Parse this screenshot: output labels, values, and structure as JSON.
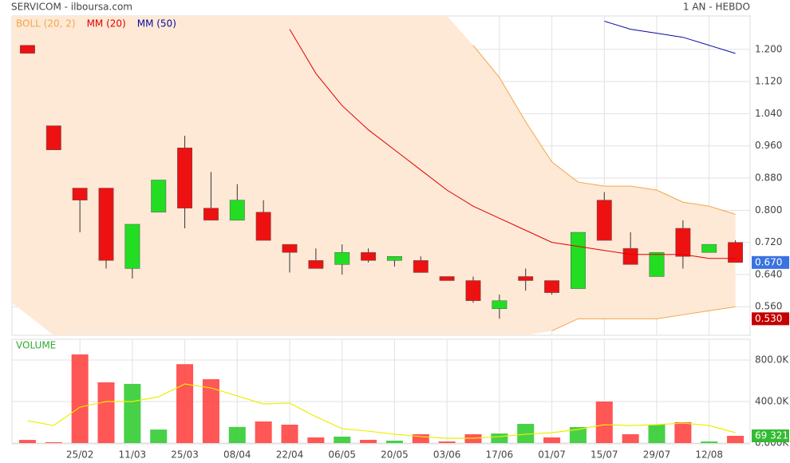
{
  "chart_data": [
    {
      "type": "candlestick",
      "title": "SERVICOM - ilboursa.com",
      "subtitle": "1 AN - HEBDO",
      "open": [
        1.21,
        1.01,
        0.855,
        0.855,
        0.655,
        0.795,
        0.955,
        0.805,
        0.775,
        0.795,
        0.715,
        0.675,
        0.665,
        0.695,
        0.675,
        0.675,
        0.635,
        0.625,
        0.555,
        0.635,
        0.625,
        0.605,
        0.825,
        0.705,
        0.635,
        0.755,
        0.695,
        0.72
      ],
      "high": [
        1.21,
        1.01,
        0.855,
        0.855,
        0.765,
        0.875,
        0.985,
        0.895,
        0.865,
        0.825,
        0.715,
        0.705,
        0.715,
        0.705,
        0.685,
        0.685,
        0.635,
        0.635,
        0.59,
        0.655,
        0.625,
        0.745,
        0.845,
        0.745,
        0.695,
        0.775,
        0.715,
        0.725
      ],
      "low": [
        1.19,
        0.95,
        0.745,
        0.655,
        0.63,
        0.795,
        0.755,
        0.775,
        0.775,
        0.725,
        0.645,
        0.655,
        0.64,
        0.67,
        0.66,
        0.645,
        0.625,
        0.57,
        0.53,
        0.6,
        0.59,
        0.605,
        0.725,
        0.665,
        0.635,
        0.655,
        0.695,
        0.67
      ],
      "close": [
        1.19,
        0.95,
        0.825,
        0.675,
        0.765,
        0.875,
        0.805,
        0.775,
        0.825,
        0.725,
        0.695,
        0.655,
        0.695,
        0.675,
        0.685,
        0.645,
        0.625,
        0.575,
        0.575,
        0.625,
        0.595,
        0.745,
        0.725,
        0.665,
        0.695,
        0.685,
        0.715,
        0.67
      ],
      "up_color": "#22dd22",
      "down_color": "#ee1111",
      "band": {
        "name": "BOLL (20, 2)",
        "color": "#f5a54a",
        "fill": "#fde9d6",
        "upper": [
          null,
          null,
          null,
          null,
          null,
          null,
          null,
          null,
          null,
          null,
          null,
          null,
          null,
          null,
          null,
          null,
          null,
          1.21,
          1.13,
          1.02,
          0.92,
          0.87,
          0.86,
          0.86,
          0.85,
          0.82,
          0.81,
          0.79
        ],
        "lower": [
          0.57,
          null,
          null,
          null,
          null,
          null,
          null,
          null,
          null,
          null,
          null,
          null,
          null,
          null,
          null,
          null,
          null,
          null,
          null,
          null,
          0.5,
          0.53,
          0.53,
          0.53,
          0.53,
          0.54,
          0.55,
          0.56
        ]
      },
      "series": [
        {
          "name": "MM (20)",
          "color": "#e00000",
          "values": [
            null,
            null,
            null,
            null,
            null,
            null,
            null,
            null,
            null,
            null,
            1.25,
            1.14,
            1.06,
            1.0,
            0.95,
            0.9,
            0.85,
            0.81,
            0.78,
            0.75,
            0.72,
            0.71,
            0.7,
            0.69,
            0.69,
            0.69,
            0.68,
            0.68
          ]
        },
        {
          "name": "MM (50)",
          "color": "#0a0aa0",
          "values": [
            null,
            null,
            null,
            null,
            null,
            null,
            null,
            null,
            null,
            null,
            null,
            null,
            null,
            null,
            null,
            null,
            null,
            null,
            null,
            null,
            null,
            null,
            1.27,
            1.25,
            1.24,
            1.23,
            1.21,
            1.19
          ]
        }
      ],
      "ylim": [
        0.489,
        1.283
      ],
      "yticks": [
        {
          "value": 0.56,
          "label": "0.560"
        },
        {
          "value": 0.64,
          "label": "0.640"
        },
        {
          "value": 0.72,
          "label": "0.720"
        },
        {
          "value": 0.8,
          "label": "0.800"
        },
        {
          "value": 0.88,
          "label": "0.880"
        },
        {
          "value": 0.96,
          "label": "0.960"
        },
        {
          "value": 1.04,
          "label": "1.040"
        },
        {
          "value": 1.12,
          "label": "1.120"
        },
        {
          "value": 1.2,
          "label": "1.200"
        }
      ],
      "price_labels": [
        {
          "value": 0.67,
          "label": "0.670",
          "color": "#3a72e0"
        },
        {
          "value": 0.53,
          "label": "0.530",
          "color": "#c40000"
        }
      ],
      "grid": true
    },
    {
      "type": "bar",
      "title": "VOLUME",
      "title_color": "#33aa33",
      "categories": [
        null,
        null,
        "25/02",
        null,
        "11/03",
        null,
        "25/03",
        null,
        "08/04",
        null,
        "22/04",
        null,
        "06/05",
        null,
        "20/05",
        null,
        "03/06",
        null,
        "17/06",
        null,
        "01/07",
        null,
        "15/07",
        null,
        "29/07",
        null,
        "12/08",
        null
      ],
      "values": [
        30000,
        8000,
        854000,
        585000,
        570000,
        130000,
        760000,
        615000,
        155000,
        208000,
        177000,
        54000,
        62000,
        31000,
        23000,
        85000,
        15000,
        85000,
        92000,
        185000,
        54000,
        154000,
        400000,
        85000,
        177000,
        200000,
        15000,
        69321
      ],
      "colors": [
        "#f44",
        "#f44",
        "#f44",
        "#f44",
        "#3c3",
        "#3c3",
        "#f44",
        "#f44",
        "#3c3",
        "#f44",
        "#f44",
        "#f44",
        "#3c3",
        "#f44",
        "#3c3",
        "#f44",
        "#f44",
        "#f44",
        "#3c3",
        "#3c3",
        "#f44",
        "#3c3",
        "#f44",
        "#f44",
        "#3c3",
        "#f44",
        "#3c3",
        "#f44"
      ],
      "average": {
        "color": "#eeee00",
        "values": [
          215000,
          169000,
          346000,
          400000,
          400000,
          446000,
          569000,
          531000,
          454000,
          377000,
          385000,
          254000,
          138000,
          115000,
          85000,
          62000,
          46000,
          46000,
          62000,
          85000,
          100000,
          131000,
          177000,
          169000,
          177000,
          192000,
          169000,
          100000
        ]
      },
      "ylim": [
        0,
        1000000
      ],
      "yticks": [
        {
          "value": 0,
          "label": "0.000K"
        },
        {
          "value": 400000,
          "label": "400.0K"
        },
        {
          "value": 800000,
          "label": "800.0K"
        }
      ],
      "last_label": {
        "value": 69321,
        "label": "69 321",
        "color": "#33bb33"
      },
      "grid": true
    }
  ]
}
